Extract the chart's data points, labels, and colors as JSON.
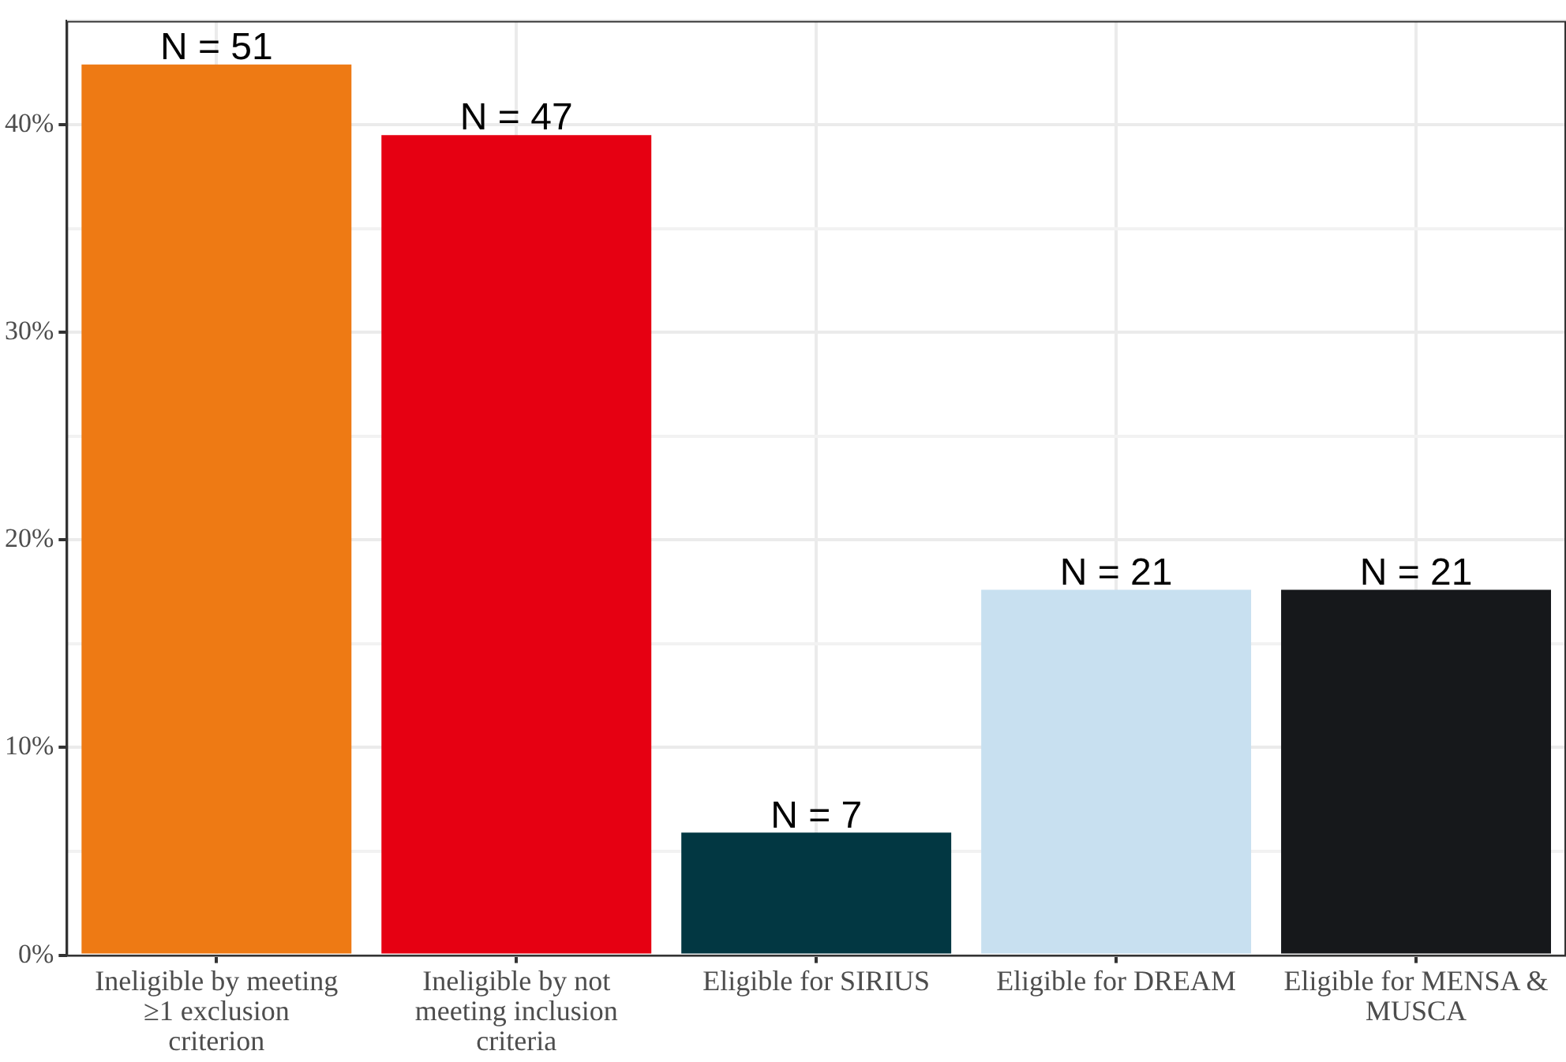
{
  "chart_data": {
    "type": "bar",
    "categories": [
      "Ineligible by meeting ≥1 exclusion criterion",
      "Ineligible by not meeting inclusion criteria",
      "Eligible for SIRIUS",
      "Eligible for DREAM",
      "Eligible for MENSA & MUSCA"
    ],
    "values": [
      42.9,
      39.5,
      5.9,
      17.6,
      17.6
    ],
    "colors": [
      "#ee7a14",
      "#e60012",
      "#023742",
      "#c8e0f0",
      "#16181b"
    ],
    "annotations": [
      {
        "text": "N = 51",
        "x": "Ineligible by meeting ≥1 exclusion criterion",
        "y": 42.9
      },
      {
        "text": "N = 47",
        "x": "Ineligible by not meeting inclusion criteria",
        "y": 39.5
      },
      {
        "text": "N = 7",
        "x": "Eligible for SIRIUS",
        "y": 5.9
      },
      {
        "text": "N = 21",
        "x": "Eligible for DREAM",
        "y": 17.6
      },
      {
        "text": "N = 21",
        "x": "Eligible for MENSA & MUSCA",
        "y": 17.6
      }
    ],
    "ylim": [
      0,
      45
    ],
    "yticks": [
      {
        "value": 0,
        "label": "0%"
      },
      {
        "value": 5,
        "label": null
      },
      {
        "value": 10,
        "label": "10%"
      },
      {
        "value": 15,
        "label": null
      },
      {
        "value": 20,
        "label": "20%"
      },
      {
        "value": 25,
        "label": null
      },
      {
        "value": 30,
        "label": "30%"
      },
      {
        "value": 35,
        "label": null
      },
      {
        "value": 40,
        "label": "40%"
      },
      {
        "value": 45,
        "label": null
      }
    ],
    "grid": true,
    "legend": false
  }
}
